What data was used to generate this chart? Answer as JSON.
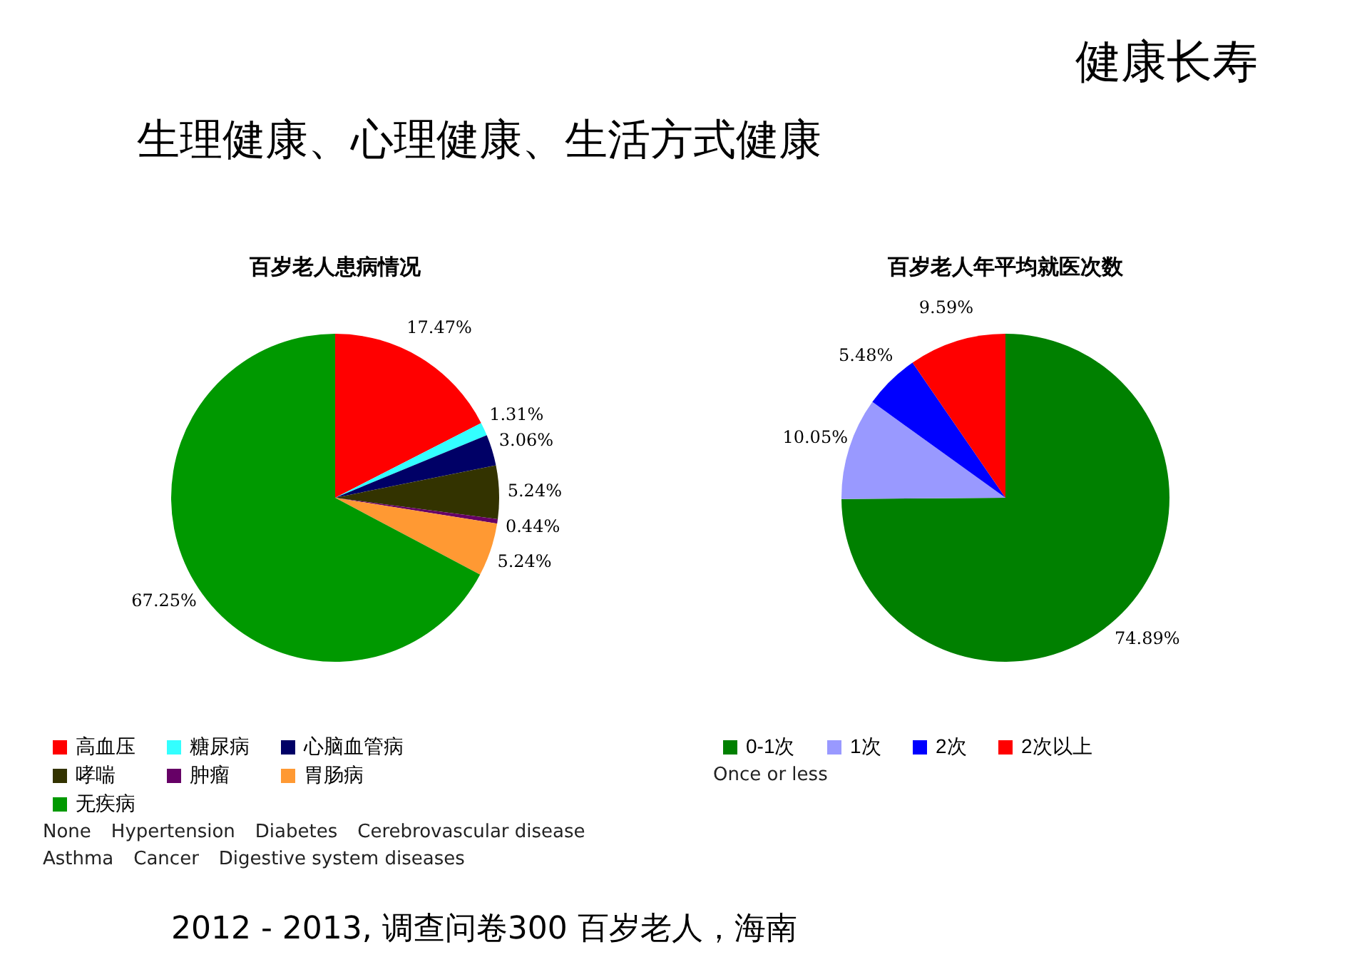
{
  "chart_data": [
    {
      "type": "other",
      "title": "健康长寿",
      "subtitle": "生理健康、心理健康、生活方式健康",
      "annotations": [
        "2012 - 2013, 调查问卷300 百岁老人，海南"
      ]
    },
    {
      "type": "pie",
      "title": "百岁老人患病情况",
      "categories": [
        "高血压",
        "糖尿病",
        "心脑血管病",
        "哮喘",
        "肿瘤",
        "胃肠病",
        "无疾病"
      ],
      "values": [
        17.47,
        1.31,
        3.06,
        5.24,
        0.44,
        5.24,
        67.25
      ],
      "value_labels": [
        "17.47%",
        "1.31%",
        "3.06%",
        "5.24%",
        "0.44%",
        "5.24%",
        "67.25%"
      ],
      "colors": [
        "#ff0000",
        "#33ffff",
        "#000066",
        "#333300",
        "#660066",
        "#ff9933",
        "#009900"
      ],
      "legend": "bottom",
      "annotations": [
        "None",
        "Hypertension",
        "Diabetes",
        "Cerebrovascular disease",
        "Asthma",
        "Cancer",
        "Digestive system diseases"
      ]
    },
    {
      "type": "pie",
      "title": "百岁老人年平均就医次数",
      "categories": [
        "0-1次",
        "1次",
        "2次",
        "2次以上"
      ],
      "values": [
        74.89,
        10.05,
        5.48,
        9.59
      ],
      "value_labels": [
        "74.89%",
        "10.05%",
        "5.48%",
        "9.59%"
      ],
      "colors": [
        "#008000",
        "#9999ff",
        "#0000ff",
        "#ff0000"
      ],
      "legend": "bottom",
      "annotations": [
        "Once or less"
      ]
    }
  ]
}
